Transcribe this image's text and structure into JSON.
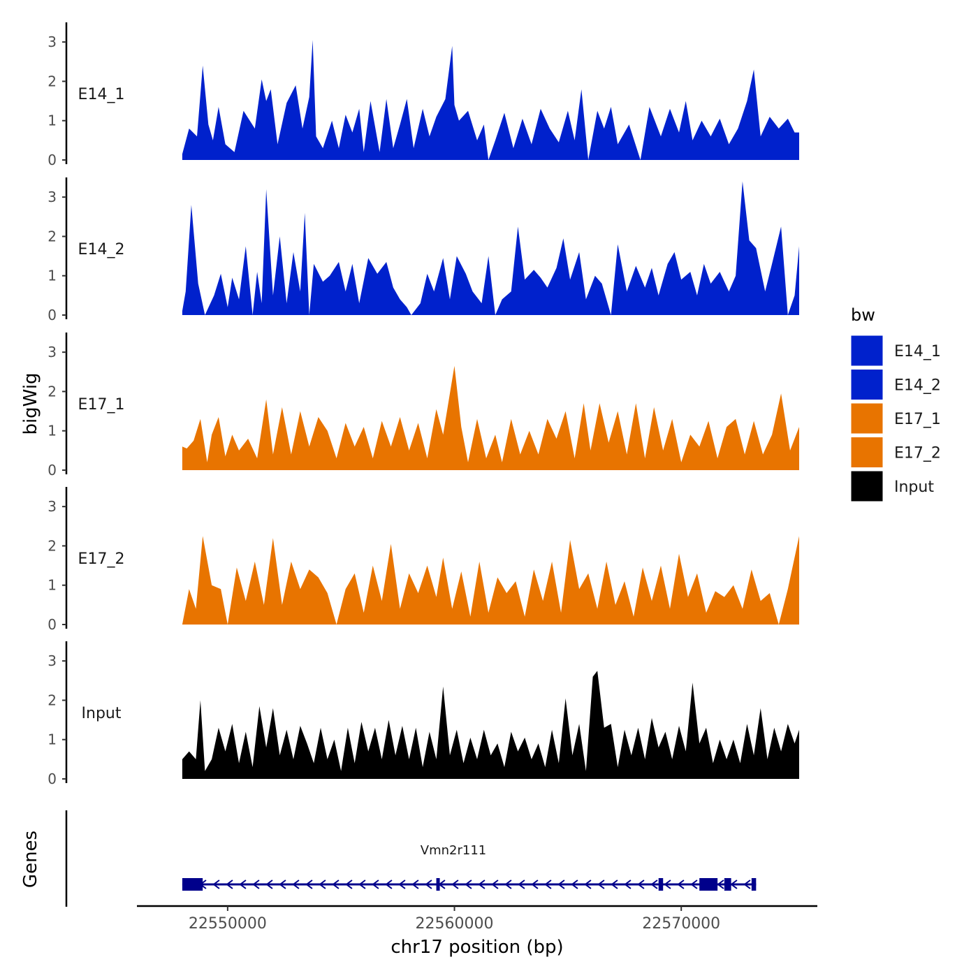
{
  "chart_data": {
    "type": "area",
    "title": "",
    "xlabel": "chr17 position (bp)",
    "ylabel": "bigWig",
    "genes_label": "Genes",
    "xlim": [
      22546000,
      22576000
    ],
    "ylim": [
      0,
      3.5
    ],
    "x_ticks": [
      22550000,
      22560000,
      22570000
    ],
    "x_tick_labels": [
      "22550000",
      "22560000",
      "22570000"
    ],
    "y_ticks": [
      0,
      1,
      2,
      3
    ],
    "y_tick_labels": [
      "0",
      "1",
      "2",
      "3"
    ],
    "legend": {
      "title": "bw",
      "position": "right",
      "entries": [
        {
          "label": "E14_1",
          "color": "#0021CC"
        },
        {
          "label": "E14_2",
          "color": "#0021CC"
        },
        {
          "label": "E17_1",
          "color": "#E87400"
        },
        {
          "label": "E17_2",
          "color": "#E87400"
        },
        {
          "label": "Input",
          "color": "#000000"
        }
      ]
    },
    "series": [
      {
        "name": "E14_1",
        "color": "#0021CC",
        "x": [
          22548000,
          22548300,
          22548650,
          22548900,
          22549150,
          22549350,
          22549600,
          22549900,
          22550300,
          22550700,
          22551200,
          22551500,
          22551700,
          22551900,
          22552200,
          22552600,
          22553000,
          22553300,
          22553600,
          22553750,
          22553900,
          22554200,
          22554600,
          22554900,
          22555200,
          22555500,
          22555800,
          22556000,
          22556300,
          22556700,
          22557000,
          22557300,
          22557600,
          22557900,
          22558200,
          22558600,
          22558900,
          22559200,
          22559600,
          22559900,
          22560000,
          22560200,
          22560600,
          22561000,
          22561300,
          22561500,
          22561800,
          22562200,
          22562600,
          22563000,
          22563400,
          22563800,
          22564200,
          22564600,
          22565000,
          22565300,
          22565600,
          22565900,
          22566300,
          22566600,
          22566900,
          22567200,
          22567700,
          22568200,
          22568600,
          22569100,
          22569500,
          22569900,
          22570200,
          22570500,
          22570900,
          22571300,
          22571700,
          22572100,
          22572500,
          22572900,
          22573200,
          22573500,
          22573900,
          22574300,
          22574700,
          22575000,
          22575200
        ],
        "y": [
          0.15,
          0.8,
          0.6,
          2.4,
          0.9,
          0.5,
          1.35,
          0.4,
          0.2,
          1.25,
          0.8,
          2.05,
          1.5,
          1.8,
          0.4,
          1.45,
          1.9,
          0.8,
          1.6,
          3.05,
          0.6,
          0.3,
          1.0,
          0.3,
          1.15,
          0.7,
          1.3,
          0.2,
          1.5,
          0.2,
          1.55,
          0.3,
          0.9,
          1.55,
          0.3,
          1.3,
          0.6,
          1.1,
          1.55,
          2.9,
          1.4,
          1.0,
          1.25,
          0.5,
          0.9,
          0.0,
          0.5,
          1.2,
          0.3,
          1.05,
          0.4,
          1.3,
          0.8,
          0.45,
          1.25,
          0.5,
          1.8,
          0.0,
          1.25,
          0.8,
          1.35,
          0.4,
          0.9,
          0.0,
          1.35,
          0.6,
          1.3,
          0.7,
          1.5,
          0.5,
          1.0,
          0.6,
          1.05,
          0.4,
          0.8,
          1.5,
          2.3,
          0.6,
          1.1,
          0.8,
          1.05,
          0.7,
          0.7
        ]
      },
      {
        "name": "E14_2",
        "color": "#0021CC",
        "x": [
          22548000,
          22548150,
          22548400,
          22548700,
          22549000,
          22549400,
          22549700,
          22550000,
          22550200,
          22550500,
          22550800,
          22551100,
          22551300,
          22551500,
          22551700,
          22552000,
          22552300,
          22552600,
          22552900,
          22553200,
          22553400,
          22553600,
          22553800,
          22554200,
          22554500,
          22554900,
          22555200,
          22555500,
          22555800,
          22556200,
          22556600,
          22557000,
          22557300,
          22557600,
          22557900,
          22558100,
          22558500,
          22558800,
          22559100,
          22559500,
          22559800,
          22560100,
          22560500,
          22560800,
          22561200,
          22561500,
          22561800,
          22562100,
          22562500,
          22562800,
          22563100,
          22563500,
          22563800,
          22564100,
          22564500,
          22564800,
          22565100,
          22565500,
          22565800,
          22566200,
          22566500,
          22566900,
          22567200,
          22567600,
          22568000,
          22568400,
          22568700,
          22569000,
          22569400,
          22569700,
          22570000,
          22570400,
          22570700,
          22571000,
          22571300,
          22571700,
          22572100,
          22572400,
          22572700,
          22573000,
          22573300,
          22573700,
          22574000,
          22574400,
          22574700,
          22575000,
          22575200
        ],
        "y": [
          0.1,
          0.6,
          2.8,
          0.8,
          0.0,
          0.5,
          1.05,
          0.2,
          0.95,
          0.4,
          1.75,
          0.0,
          1.1,
          0.3,
          3.2,
          0.5,
          2.0,
          0.3,
          1.6,
          0.6,
          2.6,
          0.0,
          1.3,
          0.85,
          1.0,
          1.35,
          0.6,
          1.3,
          0.3,
          1.45,
          1.05,
          1.35,
          0.7,
          0.4,
          0.2,
          0.0,
          0.3,
          1.05,
          0.6,
          1.45,
          0.4,
          1.5,
          1.05,
          0.6,
          0.3,
          1.5,
          0.0,
          0.4,
          0.6,
          2.25,
          0.9,
          1.15,
          0.95,
          0.7,
          1.2,
          1.95,
          0.9,
          1.6,
          0.4,
          1.0,
          0.8,
          0.0,
          1.8,
          0.6,
          1.25,
          0.7,
          1.2,
          0.5,
          1.3,
          1.6,
          0.9,
          1.1,
          0.5,
          1.3,
          0.8,
          1.1,
          0.6,
          1.0,
          3.4,
          1.9,
          1.7,
          0.6,
          1.3,
          2.25,
          0.0,
          0.5,
          1.75
        ]
      },
      {
        "name": "E17_1",
        "color": "#E87400",
        "x": [
          22548000,
          22548200,
          22548500,
          22548800,
          22549100,
          22549300,
          22549600,
          22549900,
          22550200,
          22550500,
          22550900,
          22551300,
          22551700,
          22552000,
          22552400,
          22552800,
          22553200,
          22553600,
          22554000,
          22554400,
          22554800,
          22555200,
          22555600,
          22556000,
          22556400,
          22556800,
          22557200,
          22557600,
          22558000,
          22558400,
          22558800,
          22559200,
          22559500,
          22559800,
          22560000,
          22560300,
          22560600,
          22561000,
          22561400,
          22561800,
          22562100,
          22562500,
          22562900,
          22563300,
          22563700,
          22564100,
          22564500,
          22564900,
          22565300,
          22565700,
          22566000,
          22566400,
          22566800,
          22567200,
          22567600,
          22568000,
          22568400,
          22568800,
          22569200,
          22569600,
          22570000,
          22570400,
          22570800,
          22571200,
          22571600,
          22572000,
          22572400,
          22572800,
          22573200,
          22573600,
          22574000,
          22574400,
          22574800,
          22575200
        ],
        "y": [
          0.6,
          0.55,
          0.75,
          1.3,
          0.2,
          0.9,
          1.35,
          0.35,
          0.9,
          0.5,
          0.8,
          0.3,
          1.8,
          0.4,
          1.6,
          0.4,
          1.5,
          0.6,
          1.35,
          1.0,
          0.3,
          1.2,
          0.6,
          1.1,
          0.3,
          1.25,
          0.6,
          1.35,
          0.5,
          1.2,
          0.3,
          1.55,
          0.9,
          1.95,
          2.65,
          1.1,
          0.2,
          1.3,
          0.3,
          0.9,
          0.2,
          1.3,
          0.4,
          1.0,
          0.4,
          1.3,
          0.8,
          1.5,
          0.3,
          1.7,
          0.5,
          1.7,
          0.7,
          1.5,
          0.4,
          1.7,
          0.3,
          1.6,
          0.5,
          1.3,
          0.2,
          0.9,
          0.6,
          1.25,
          0.3,
          1.1,
          1.3,
          0.4,
          1.25,
          0.4,
          0.9,
          1.95,
          0.5,
          1.1
        ]
      },
      {
        "name": "E17_2",
        "color": "#E87400",
        "x": [
          22548000,
          22548300,
          22548600,
          22548900,
          22549300,
          22549700,
          22550000,
          22550400,
          22550800,
          22551200,
          22551600,
          22552000,
          22552400,
          22552800,
          22553200,
          22553600,
          22554000,
          22554400,
          22554800,
          22555200,
          22555600,
          22556000,
          22556400,
          22556800,
          22557200,
          22557600,
          22558000,
          22558400,
          22558800,
          22559200,
          22559500,
          22559900,
          22560300,
          22560700,
          22561100,
          22561500,
          22561900,
          22562300,
          22562700,
          22563100,
          22563500,
          22563900,
          22564300,
          22564700,
          22565100,
          22565500,
          22565900,
          22566300,
          22566700,
          22567100,
          22567500,
          22567900,
          22568300,
          22568700,
          22569100,
          22569500,
          22569900,
          22570300,
          22570700,
          22571100,
          22571500,
          22571900,
          22572300,
          22572700,
          22573100,
          22573500,
          22573900,
          22574300,
          22574700,
          22575200
        ],
        "y": [
          0.0,
          0.9,
          0.4,
          2.25,
          1.0,
          0.9,
          0.0,
          1.45,
          0.6,
          1.6,
          0.5,
          2.2,
          0.5,
          1.6,
          0.9,
          1.4,
          1.2,
          0.8,
          0.0,
          0.9,
          1.3,
          0.3,
          1.5,
          0.6,
          2.05,
          0.4,
          1.3,
          0.8,
          1.5,
          0.7,
          1.7,
          0.4,
          1.35,
          0.2,
          1.6,
          0.3,
          1.2,
          0.8,
          1.1,
          0.2,
          1.4,
          0.6,
          1.6,
          0.3,
          2.15,
          0.9,
          1.3,
          0.4,
          1.6,
          0.5,
          1.1,
          0.2,
          1.45,
          0.6,
          1.5,
          0.4,
          1.8,
          0.7,
          1.3,
          0.3,
          0.85,
          0.7,
          1.0,
          0.4,
          1.4,
          0.6,
          0.8,
          0.0,
          0.9,
          2.25
        ]
      },
      {
        "name": "Input",
        "color": "#000000",
        "x": [
          22548000,
          22548300,
          22548600,
          22548800,
          22549000,
          22549300,
          22549600,
          22549900,
          22550200,
          22550500,
          22550800,
          22551100,
          22551400,
          22551700,
          22552000,
          22552300,
          22552600,
          22552900,
          22553200,
          22553500,
          22553800,
          22554100,
          22554400,
          22554700,
          22555000,
          22555300,
          22555600,
          22555900,
          22556200,
          22556500,
          22556800,
          22557100,
          22557400,
          22557700,
          22558000,
          22558300,
          22558600,
          22558900,
          22559200,
          22559500,
          22559800,
          22560100,
          22560400,
          22560700,
          22561000,
          22561300,
          22561600,
          22561900,
          22562200,
          22562500,
          22562800,
          22563100,
          22563400,
          22563700,
          22564000,
          22564300,
          22564600,
          22564900,
          22565200,
          22565500,
          22565800,
          22566100,
          22566300,
          22566600,
          22566900,
          22567200,
          22567500,
          22567800,
          22568100,
          22568400,
          22568700,
          22569000,
          22569300,
          22569600,
          22569900,
          22570200,
          22570500,
          22570800,
          22571100,
          22571400,
          22571700,
          22572000,
          22572300,
          22572600,
          22572900,
          22573200,
          22573500,
          22573800,
          22574100,
          22574400,
          22574700,
          22575000,
          22575200
        ],
        "y": [
          0.5,
          0.7,
          0.5,
          2.0,
          0.2,
          0.5,
          1.3,
          0.7,
          1.4,
          0.4,
          1.2,
          0.3,
          1.85,
          0.8,
          1.8,
          0.6,
          1.25,
          0.5,
          1.35,
          0.9,
          0.4,
          1.3,
          0.5,
          1.0,
          0.2,
          1.3,
          0.4,
          1.45,
          0.7,
          1.3,
          0.5,
          1.5,
          0.6,
          1.35,
          0.5,
          1.3,
          0.3,
          1.2,
          0.5,
          2.35,
          0.6,
          1.25,
          0.4,
          1.05,
          0.5,
          1.25,
          0.6,
          0.9,
          0.3,
          1.2,
          0.7,
          1.05,
          0.5,
          0.9,
          0.3,
          1.25,
          0.4,
          2.05,
          0.6,
          1.4,
          0.2,
          2.6,
          2.75,
          1.3,
          1.4,
          0.3,
          1.25,
          0.6,
          1.3,
          0.5,
          1.55,
          0.8,
          1.2,
          0.5,
          1.35,
          0.7,
          2.45,
          0.9,
          1.3,
          0.4,
          1.0,
          0.5,
          1.0,
          0.4,
          1.4,
          0.6,
          1.8,
          0.5,
          1.3,
          0.7,
          1.4,
          0.9,
          1.25
        ]
      }
    ],
    "gene_track": {
      "gene_name": "Vmn2r111",
      "strand": "-",
      "color": "#00008B",
      "start": 22548000,
      "end": 22573300,
      "exons": [
        [
          22548000,
          22548900
        ],
        [
          22559200,
          22559350
        ],
        [
          22569000,
          22569200
        ],
        [
          22570800,
          22571600
        ],
        [
          22571900,
          22572200
        ],
        [
          22573100,
          22573300
        ]
      ]
    }
  }
}
